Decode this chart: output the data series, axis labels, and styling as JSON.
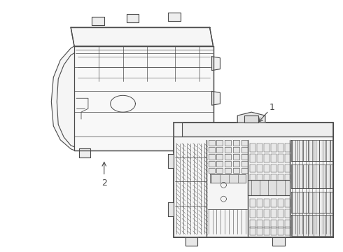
{
  "background_color": "#ffffff",
  "line_color": "#4a4a4a",
  "line_width": 0.8,
  "label_1_text": "1",
  "label_2_text": "2",
  "figsize": [
    4.9,
    3.6
  ],
  "dpi": 100,
  "cover_color": "#f8f8f8",
  "module_color": "#f0f0f0"
}
